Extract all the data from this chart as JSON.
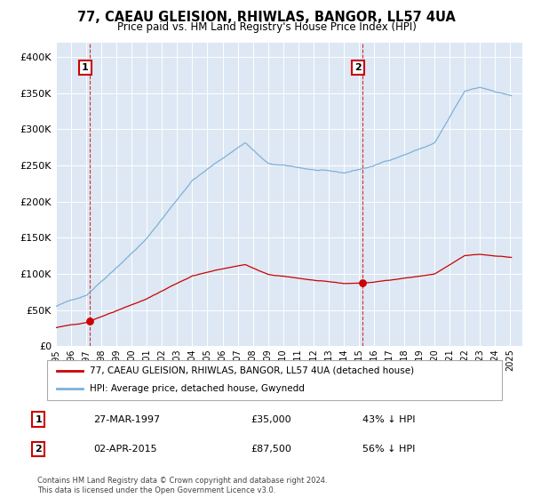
{
  "title": "77, CAEAU GLEISION, RHIWLAS, BANGOR, LL57 4UA",
  "subtitle": "Price paid vs. HM Land Registry's House Price Index (HPI)",
  "legend_entry1": "77, CAEAU GLEISION, RHIWLAS, BANGOR, LL57 4UA (detached house)",
  "legend_entry2": "HPI: Average price, detached house, Gwynedd",
  "annotation1_label": "1",
  "annotation1_date": "27-MAR-1997",
  "annotation1_price": 35000,
  "annotation1_pct": "43% ↓ HPI",
  "annotation1_year": 1997.23,
  "annotation2_label": "2",
  "annotation2_date": "02-APR-2015",
  "annotation2_price": 87500,
  "annotation2_pct": "56% ↓ HPI",
  "annotation2_year": 2015.25,
  "footer": "Contains HM Land Registry data © Crown copyright and database right 2024.\nThis data is licensed under the Open Government Licence v3.0.",
  "hpi_color": "#7fb0d8",
  "price_color": "#cc0000",
  "background_color": "#dde8f4",
  "grid_color": "#ffffff",
  "ylim": [
    0,
    420000
  ],
  "xlim_start": 1995.0,
  "xlim_end": 2025.8
}
